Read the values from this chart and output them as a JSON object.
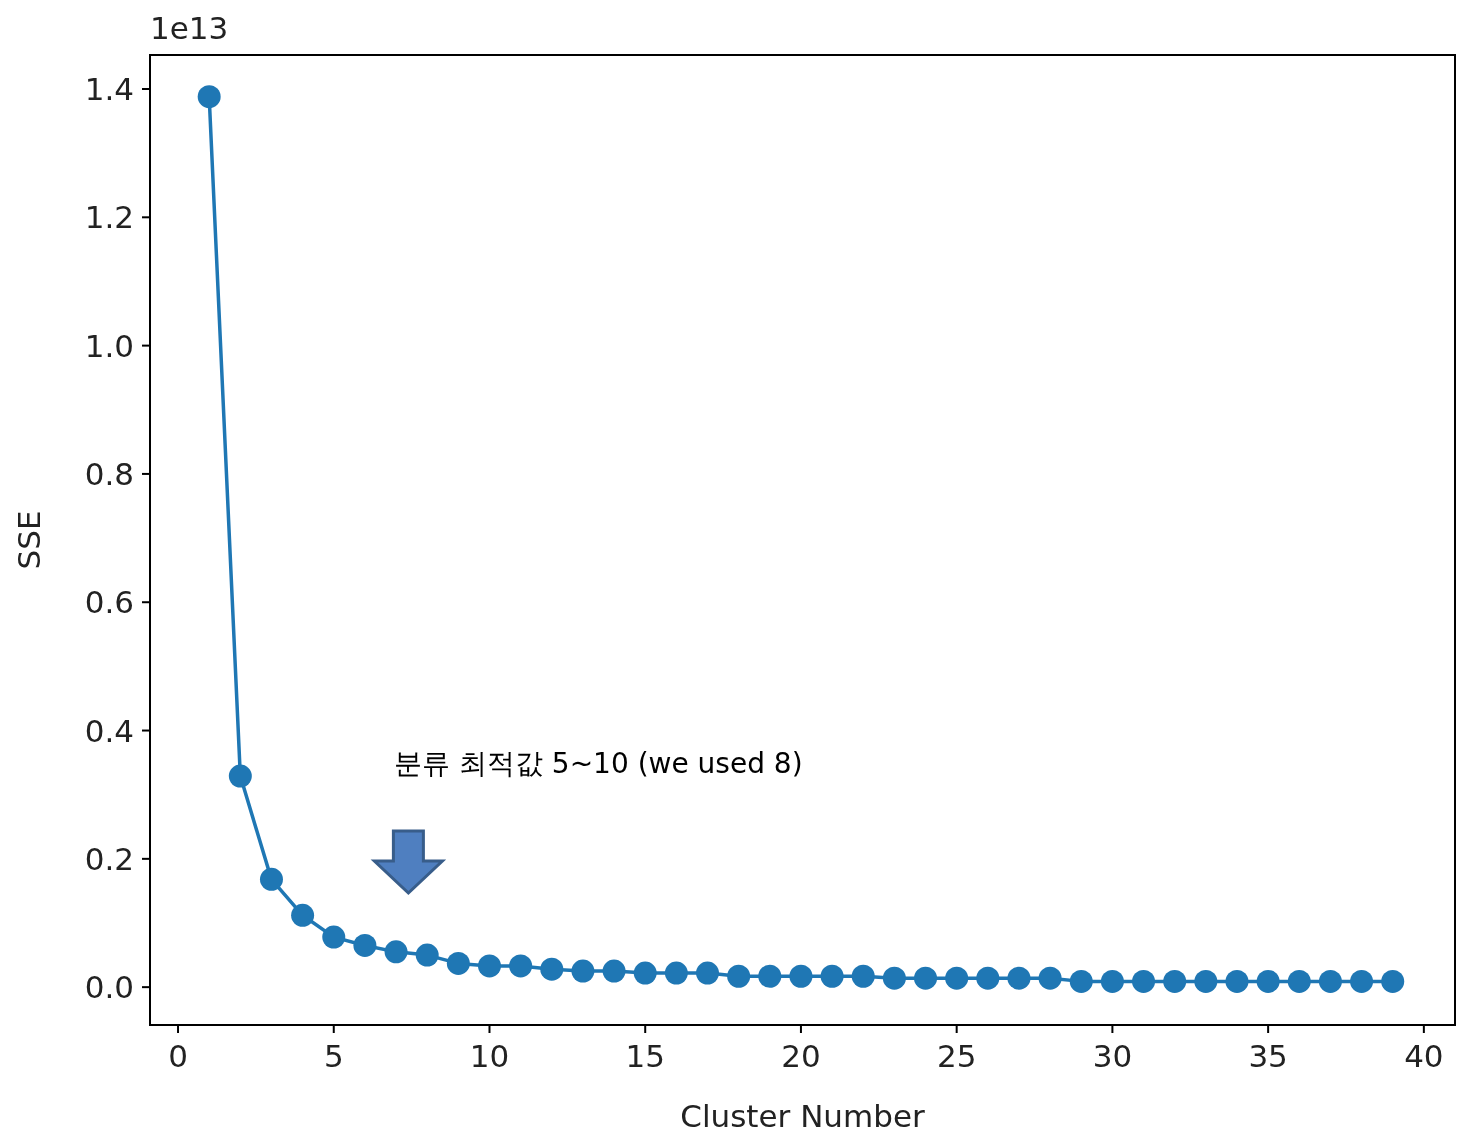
{
  "chart_data": {
    "type": "line",
    "xlabel": "Cluster Number",
    "ylabel": "SSE",
    "annotations": [
      "1e13",
      "분류 최적값 5~10 (we used 8)"
    ],
    "x": [
      1,
      2,
      3,
      4,
      5,
      6,
      7,
      8,
      9,
      10,
      11,
      12,
      13,
      14,
      15,
      16,
      17,
      18,
      19,
      20,
      21,
      22,
      23,
      24,
      25,
      26,
      27,
      28,
      29,
      30,
      31,
      32,
      33,
      34,
      35,
      36,
      37,
      38,
      39
    ],
    "series": [
      {
        "color": "#1f77b4",
        "values": [
          1.388,
          0.329,
          0.168,
          0.112,
          0.078,
          0.065,
          0.055,
          0.05,
          0.037,
          0.033,
          0.033,
          0.028,
          0.025,
          0.025,
          0.022,
          0.022,
          0.022,
          0.017,
          0.017,
          0.017,
          0.017,
          0.017,
          0.014,
          0.014,
          0.014,
          0.014,
          0.014,
          0.014,
          0.009,
          0.009,
          0.009,
          0.009,
          0.009,
          0.009,
          0.009,
          0.009,
          0.009,
          0.009,
          0.009
        ]
      }
    ],
    "xlim": [
      -0.9,
      41.0
    ],
    "ylim": [
      -0.059,
      1.453
    ],
    "xticks": [
      0,
      5,
      10,
      15,
      20,
      25,
      30,
      35,
      40
    ],
    "yticks": [
      {
        "value": 0,
        "label": "0.0"
      },
      {
        "value": 0.2,
        "label": "0.2"
      },
      {
        "value": 0.4,
        "label": "0.4"
      },
      {
        "value": 0.6,
        "label": "0.6"
      },
      {
        "value": 0.8,
        "label": "0.8"
      },
      {
        "value": 1.0,
        "label": "1.0"
      },
      {
        "value": 1.2,
        "label": "1.2"
      },
      {
        "value": 1.4,
        "label": "1.4"
      }
    ],
    "grid": false,
    "marker": "circle",
    "line_style": "solid"
  }
}
